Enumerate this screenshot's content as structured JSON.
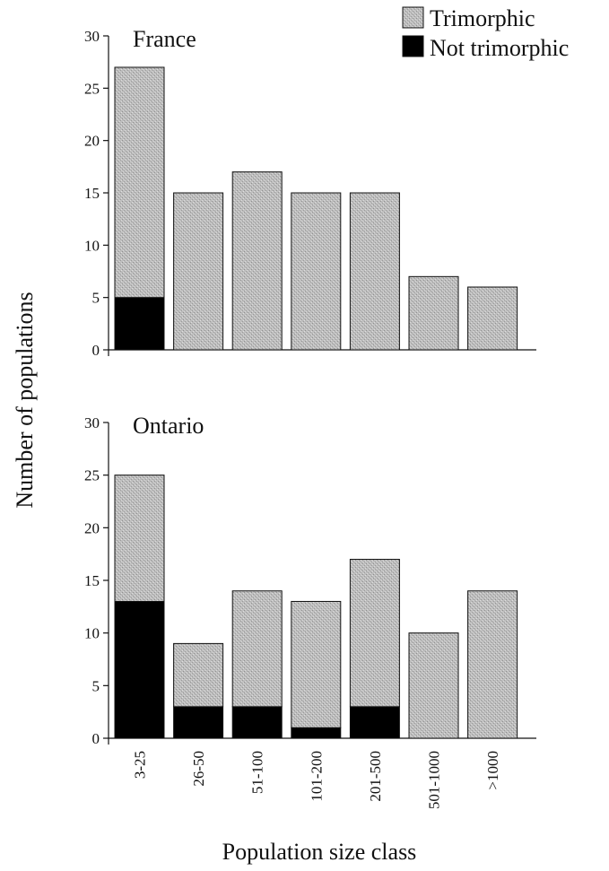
{
  "chart_data": [
    {
      "type": "bar",
      "stacked": true,
      "title": "France",
      "categories": [
        "3-25",
        "26-50",
        "51-100",
        "101-200",
        "201-500",
        "501-1000",
        ">1000"
      ],
      "series": [
        {
          "name": "Not trimorphic",
          "values": [
            5,
            0,
            0,
            0,
            0,
            0,
            0
          ]
        },
        {
          "name": "Trimorphic",
          "values": [
            22,
            15,
            17,
            15,
            15,
            7,
            6
          ]
        }
      ],
      "ylim": [
        0,
        30
      ],
      "yticks": [
        0,
        5,
        10,
        15,
        20,
        25,
        30
      ],
      "grid": false
    },
    {
      "type": "bar",
      "stacked": true,
      "title": "Ontario",
      "categories": [
        "3-25",
        "26-50",
        "51-100",
        "101-200",
        "201-500",
        "501-1000",
        ">1000"
      ],
      "series": [
        {
          "name": "Not trimorphic",
          "values": [
            13,
            3,
            3,
            1,
            3,
            0,
            0
          ]
        },
        {
          "name": "Trimorphic",
          "values": [
            12,
            6,
            11,
            12,
            14,
            10,
            14
          ]
        }
      ],
      "ylim": [
        0,
        30
      ],
      "yticks": [
        0,
        5,
        10,
        15,
        20,
        25,
        30
      ],
      "grid": false
    }
  ],
  "ylabel": "Number of populations",
  "xlabel": "Population size class",
  "legend": {
    "placement": "top-right",
    "items": [
      {
        "label": "Trimorphic",
        "color": "#bdbdbd"
      },
      {
        "label": "Not trimorphic",
        "color": "#000000"
      }
    ]
  },
  "colors": {
    "trimorphic": "#bdbdbd",
    "not_trimorphic": "#000000",
    "axis": "#111111"
  }
}
